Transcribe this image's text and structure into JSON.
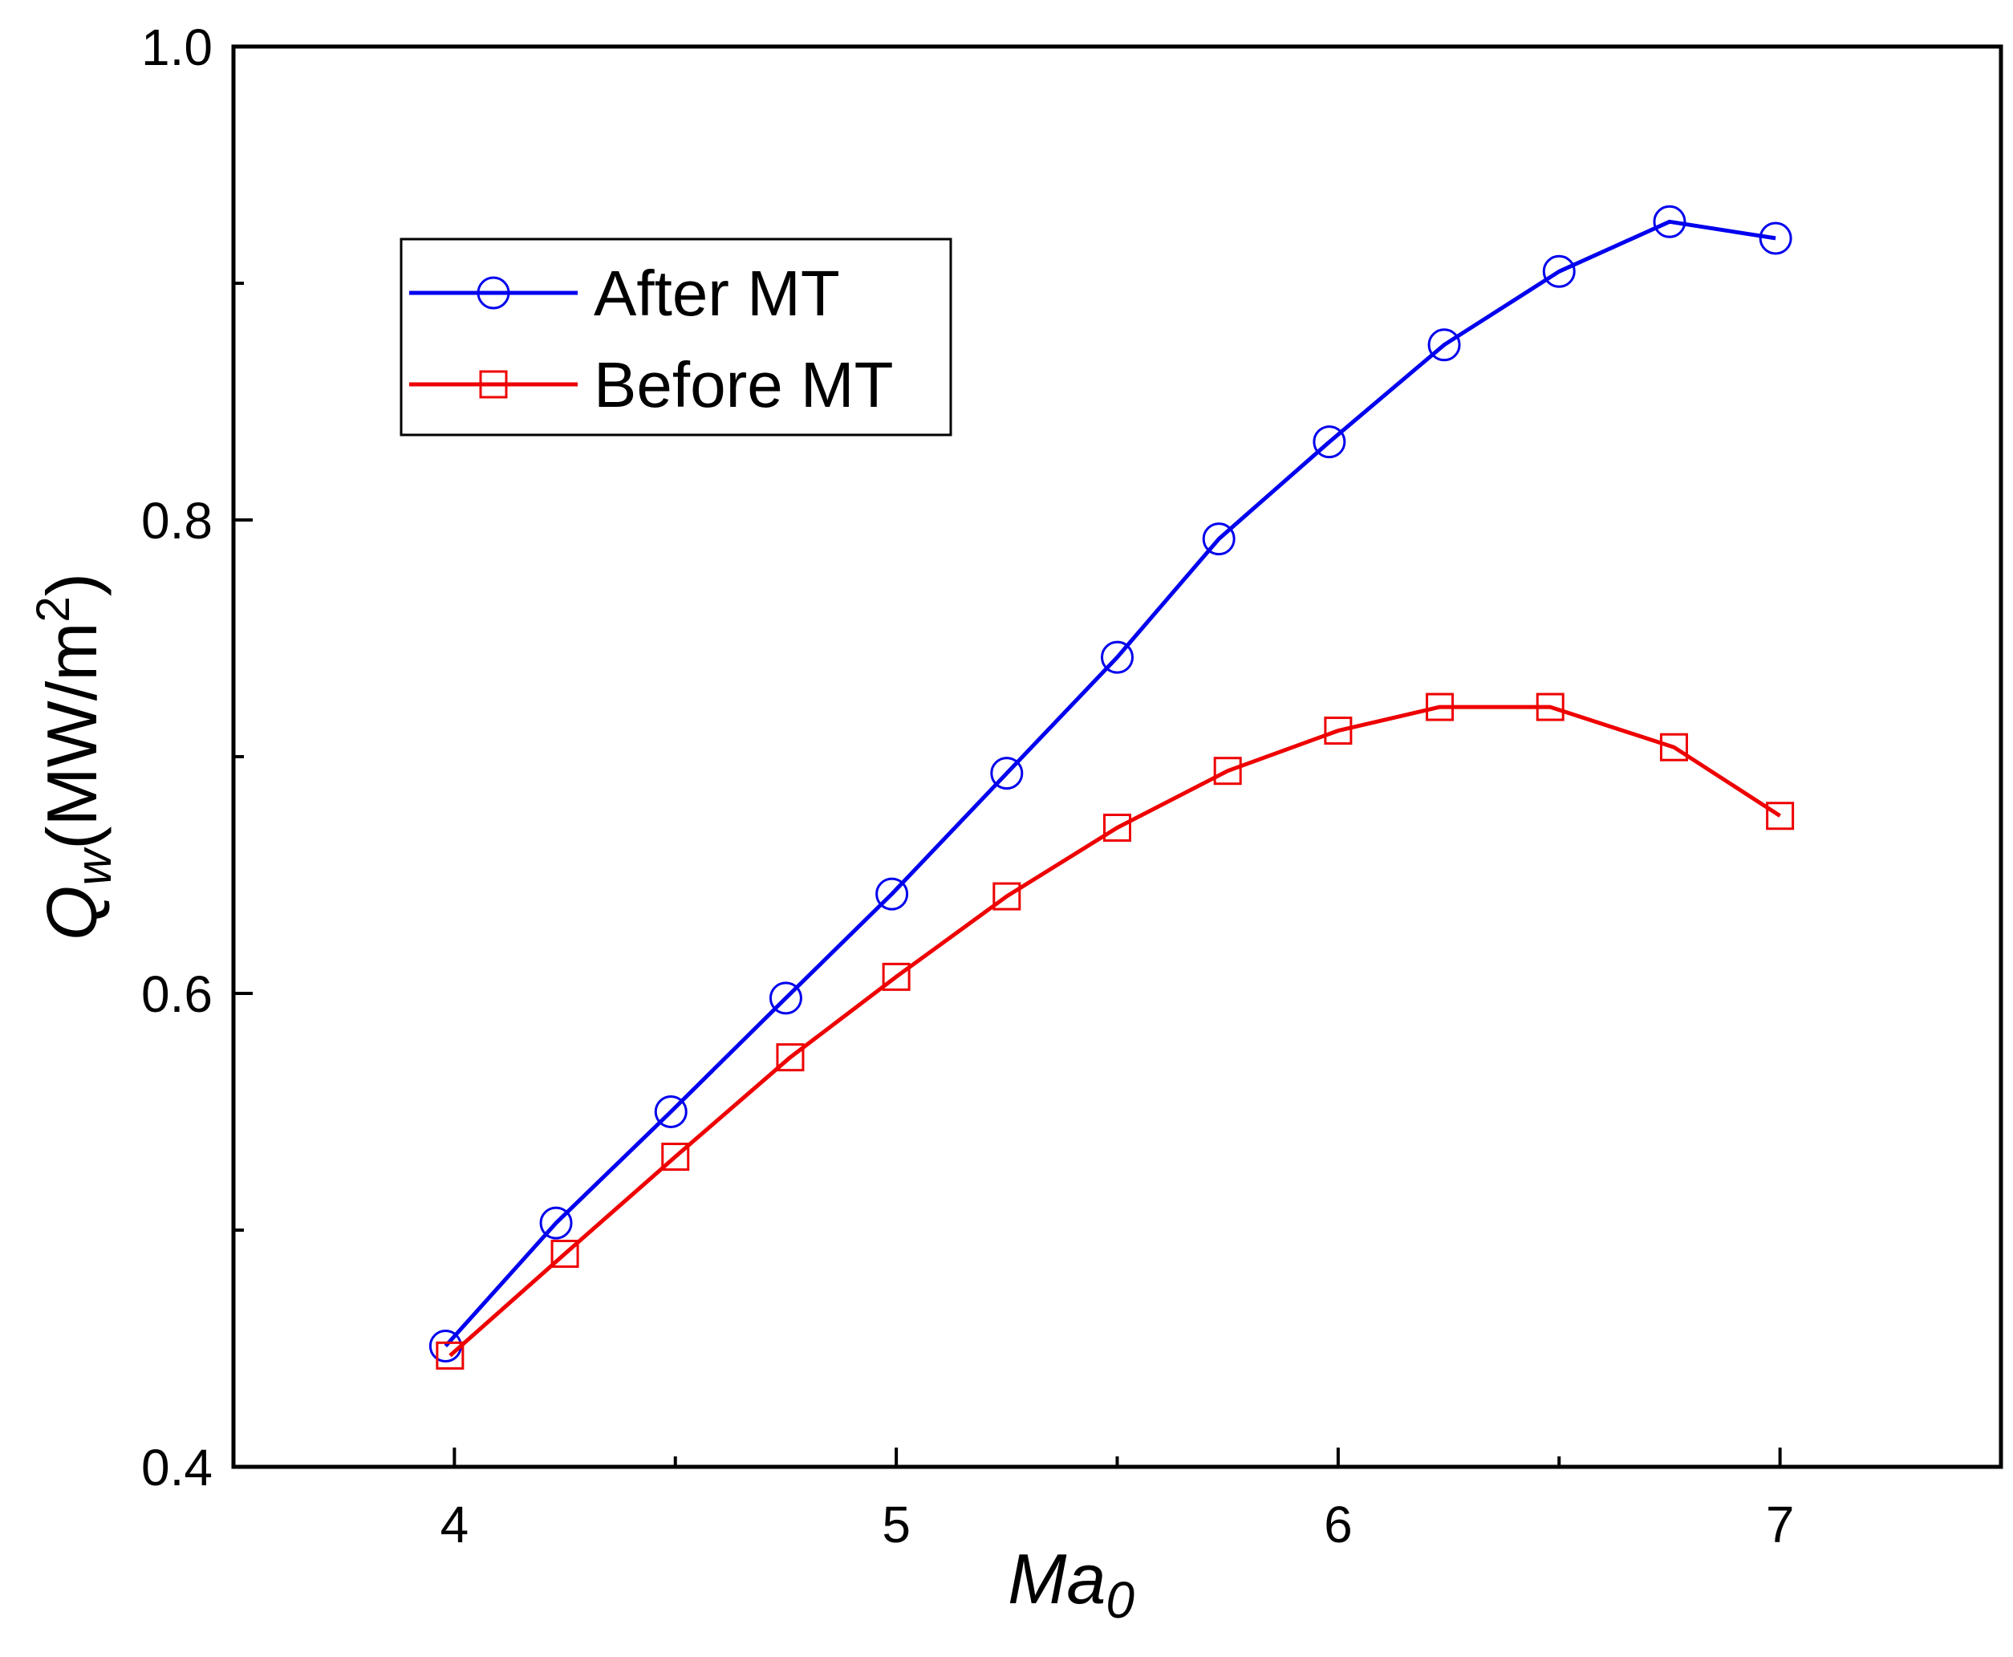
{
  "chart_data": {
    "type": "line",
    "title": "",
    "xlabel": {
      "main": "Ma",
      "sub": "0"
    },
    "ylabel": {
      "main": "Q",
      "sub": "w",
      "units_open": "(MW/m",
      "units_sup": "2",
      "units_close": ")"
    },
    "xlim": [
      3.5,
      7.5
    ],
    "ylim": [
      0.4,
      1.0
    ],
    "x_ticks": [
      {
        "value": 4,
        "label": "4"
      },
      {
        "value": 5,
        "label": "5"
      },
      {
        "value": 6,
        "label": "6"
      },
      {
        "value": 7,
        "label": "7"
      }
    ],
    "x_minor_ticks": [
      4.5,
      5.5,
      6.5
    ],
    "y_ticks": [
      {
        "value": 0.4,
        "label": "0.4"
      },
      {
        "value": 0.6,
        "label": "0.6"
      },
      {
        "value": 0.8,
        "label": "0.8"
      },
      {
        "value": 1.0,
        "label": "1.0"
      }
    ],
    "y_minor_ticks": [
      0.5,
      0.7,
      0.9
    ],
    "grid": false,
    "legend_position": "upper-left",
    "series": [
      {
        "name": "After MT",
        "color": "#0000ee",
        "marker": "circle",
        "x": [
          3.98,
          4.23,
          4.49,
          4.75,
          4.99,
          5.25,
          5.5,
          5.73,
          5.98,
          6.24,
          6.5,
          6.75,
          6.99
        ],
        "y": [
          0.451,
          0.503,
          0.55,
          0.598,
          0.642,
          0.693,
          0.742,
          0.792,
          0.833,
          0.874,
          0.905,
          0.926,
          0.919
        ]
      },
      {
        "name": "Before MT",
        "color": "#ee0000",
        "marker": "square",
        "x": [
          3.99,
          4.25,
          4.5,
          4.76,
          5.0,
          5.25,
          5.5,
          5.75,
          6.0,
          6.23,
          6.48,
          6.76,
          7.0
        ],
        "y": [
          0.447,
          0.49,
          0.531,
          0.573,
          0.607,
          0.641,
          0.67,
          0.694,
          0.711,
          0.721,
          0.721,
          0.704,
          0.675
        ]
      }
    ]
  }
}
